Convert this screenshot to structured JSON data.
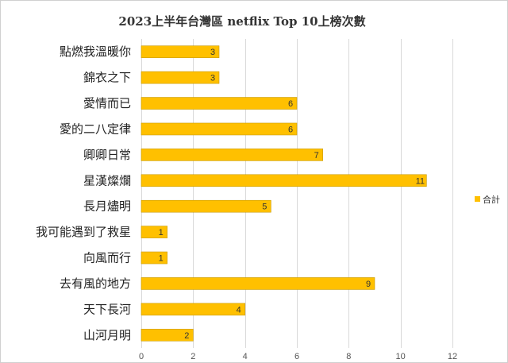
{
  "chart_data": {
    "type": "bar",
    "orientation": "horizontal",
    "title": "2023上半年台灣區 netflix Top 10上榜次數",
    "categories": [
      "點燃我溫暖你",
      "錦衣之下",
      "愛情而已",
      "愛的二八定律",
      "卿卿日常",
      "星漢燦爛",
      "長月燼明",
      "我可能遇到了救星",
      "向風而行",
      "去有風的地方",
      "天下長河",
      "山河月明"
    ],
    "series": [
      {
        "name": "合計",
        "values": [
          3,
          3,
          6,
          6,
          7,
          11,
          5,
          1,
          1,
          9,
          4,
          2
        ],
        "color": "#FFC000"
      }
    ],
    "xlim": [
      0,
      12
    ],
    "xticks": [
      0,
      2,
      4,
      6,
      8,
      10,
      12
    ],
    "grid": true,
    "legend": "right",
    "data_labels": true,
    "colors": {
      "bar": "#FFC000",
      "bar_edge": "#C99A00"
    }
  }
}
